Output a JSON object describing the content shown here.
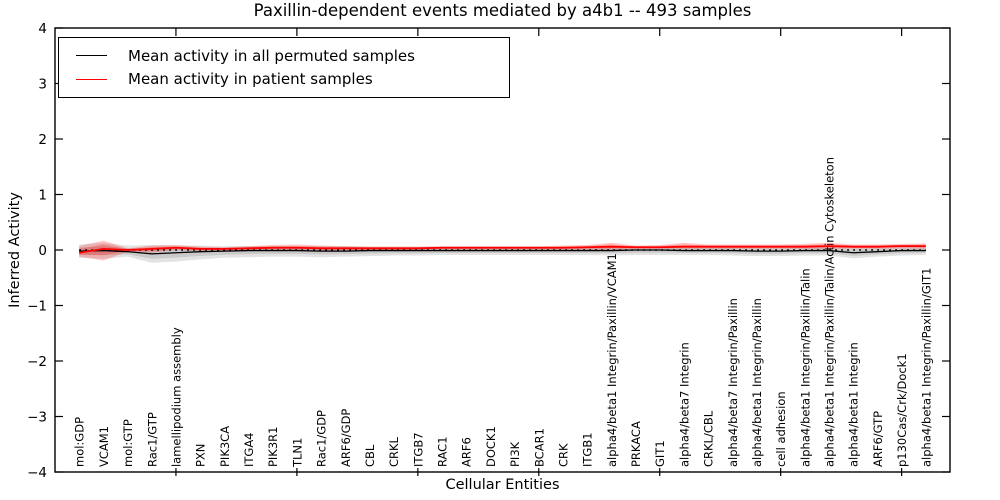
{
  "title": "Paxillin-dependent events mediated by a4b1 -- 493 samples",
  "axes": {
    "xlabel": "Cellular Entities",
    "ylabel": "Inferred Activity"
  },
  "legend": {
    "items": [
      {
        "label": "Mean activity in all permuted samples",
        "color": "#000000"
      },
      {
        "label": "Mean activity in patient samples",
        "color": "#ff0000"
      }
    ]
  },
  "chart_data": {
    "type": "line",
    "title": "Paxillin-dependent events mediated by a4b1 -- 493 samples",
    "xlabel": "Cellular Entities",
    "ylabel": "Inferred Activity",
    "ylim": [
      -4,
      4
    ],
    "yticks": [
      -4,
      -3,
      -2,
      -1,
      0,
      1,
      2,
      3,
      4
    ],
    "ytick_labels": [
      "−4",
      "−3",
      "−2",
      "−1",
      "0",
      "1",
      "2",
      "3",
      "4"
    ],
    "xticks_at_categories": [
      5,
      10,
      15,
      20,
      25,
      30,
      35
    ],
    "grid": false,
    "zero_line": true,
    "legend_position": "upper left",
    "categories": [
      "mol:GDP",
      "VCAM1",
      "mol:GTP",
      "Rac1/GTP",
      "lamellipodium assembly",
      "PXN",
      "PIK3CA",
      "ITGA4",
      "PIK3R1",
      "TLN1",
      "Rac1/GDP",
      "ARF6/GDP",
      "CBL",
      "CRKL",
      "ITGB7",
      "RAC1",
      "ARF6",
      "DOCK1",
      "PI3K",
      "BCAR1",
      "CRK",
      "ITGB1",
      "alpha4/beta1 Integrin/Paxillin/VCAM1",
      "PRKACA",
      "GIT1",
      "alpha4/beta7 Integrin",
      "CRKL/CBL",
      "alpha4/beta7 Integrin/Paxillin",
      "alpha4/beta1 Integrin/Paxillin",
      "cell adhesion",
      "alpha4/beta1 Integrin/Paxillin/Talin",
      "alpha4/beta1 Integrin/Paxillin/Talin/Actin Cytoskeleton",
      "alpha4/beta1 Integrin",
      "ARF6/GTP",
      "p130Cas/Crk/Dock1",
      "alpha4/beta1 Integrin/Paxillin/GIT1"
    ],
    "series": [
      {
        "name": "Mean activity in all permuted samples",
        "color": "#000000",
        "line_width": 1.3,
        "band_color": "rgba(0,0,0,0.11)",
        "values": [
          -0.02,
          -0.01,
          -0.03,
          -0.07,
          -0.05,
          -0.03,
          -0.02,
          -0.01,
          -0.01,
          -0.01,
          -0.02,
          -0.02,
          -0.01,
          -0.01,
          -0.01,
          -0.01,
          -0.01,
          -0.01,
          -0.01,
          -0.01,
          -0.01,
          -0.01,
          -0.01,
          0,
          0,
          -0.01,
          -0.01,
          -0.01,
          -0.02,
          -0.02,
          -0.01,
          -0.01,
          -0.05,
          -0.03,
          -0.01,
          -0.01
        ],
        "band_upper": [
          0.1,
          0.13,
          0.08,
          0.09,
          0.08,
          0.08,
          0.07,
          0.07,
          0.07,
          0.07,
          0.07,
          0.07,
          0.06,
          0.06,
          0.06,
          0.06,
          0.06,
          0.06,
          0.06,
          0.06,
          0.06,
          0.06,
          0.06,
          0.06,
          0.06,
          0.06,
          0.06,
          0.06,
          0.06,
          0.06,
          0.06,
          0.07,
          0.07,
          0.07,
          0.06,
          0.06
        ],
        "band_lower": [
          -0.14,
          -0.16,
          -0.12,
          -0.23,
          -0.21,
          -0.17,
          -0.14,
          -0.13,
          -0.12,
          -0.12,
          -0.13,
          -0.12,
          -0.11,
          -0.1,
          -0.1,
          -0.09,
          -0.09,
          -0.09,
          -0.09,
          -0.09,
          -0.09,
          -0.09,
          -0.1,
          -0.09,
          -0.09,
          -0.09,
          -0.09,
          -0.1,
          -0.11,
          -0.11,
          -0.1,
          -0.1,
          -0.15,
          -0.12,
          -0.1,
          -0.09
        ]
      },
      {
        "name": "Mean activity in patient samples",
        "color": "#ff0000",
        "line_width": 1.8,
        "band_color": "rgba(255,0,0,0.22)",
        "values": [
          -0.05,
          0.02,
          0.0,
          0.02,
          0.04,
          0.02,
          0.02,
          0.03,
          0.04,
          0.04,
          0.03,
          0.03,
          0.03,
          0.03,
          0.03,
          0.04,
          0.04,
          0.04,
          0.04,
          0.04,
          0.04,
          0.05,
          0.06,
          0.05,
          0.05,
          0.06,
          0.06,
          0.06,
          0.06,
          0.06,
          0.06,
          0.07,
          0.06,
          0.06,
          0.07,
          0.07
        ],
        "band_upper": [
          0.07,
          0.17,
          0.03,
          0.08,
          0.09,
          0.06,
          0.05,
          0.07,
          0.09,
          0.1,
          0.08,
          0.07,
          0.06,
          0.06,
          0.06,
          0.07,
          0.07,
          0.07,
          0.07,
          0.07,
          0.08,
          0.09,
          0.13,
          0.08,
          0.09,
          0.13,
          0.1,
          0.1,
          0.1,
          0.1,
          0.11,
          0.13,
          0.1,
          0.1,
          0.11,
          0.12
        ],
        "band_lower": [
          -0.12,
          -0.19,
          -0.03,
          -0.05,
          0.0,
          -0.02,
          -0.01,
          0.0,
          0.0,
          0.0,
          -0.01,
          -0.01,
          0.0,
          0.0,
          0.0,
          0.01,
          0.01,
          0.01,
          0.01,
          0.01,
          0.01,
          0.01,
          0.01,
          0.02,
          0.02,
          0.02,
          0.02,
          0.02,
          0.02,
          0.02,
          0.02,
          0.02,
          0.02,
          0.02,
          0.03,
          0.02
        ]
      }
    ]
  }
}
